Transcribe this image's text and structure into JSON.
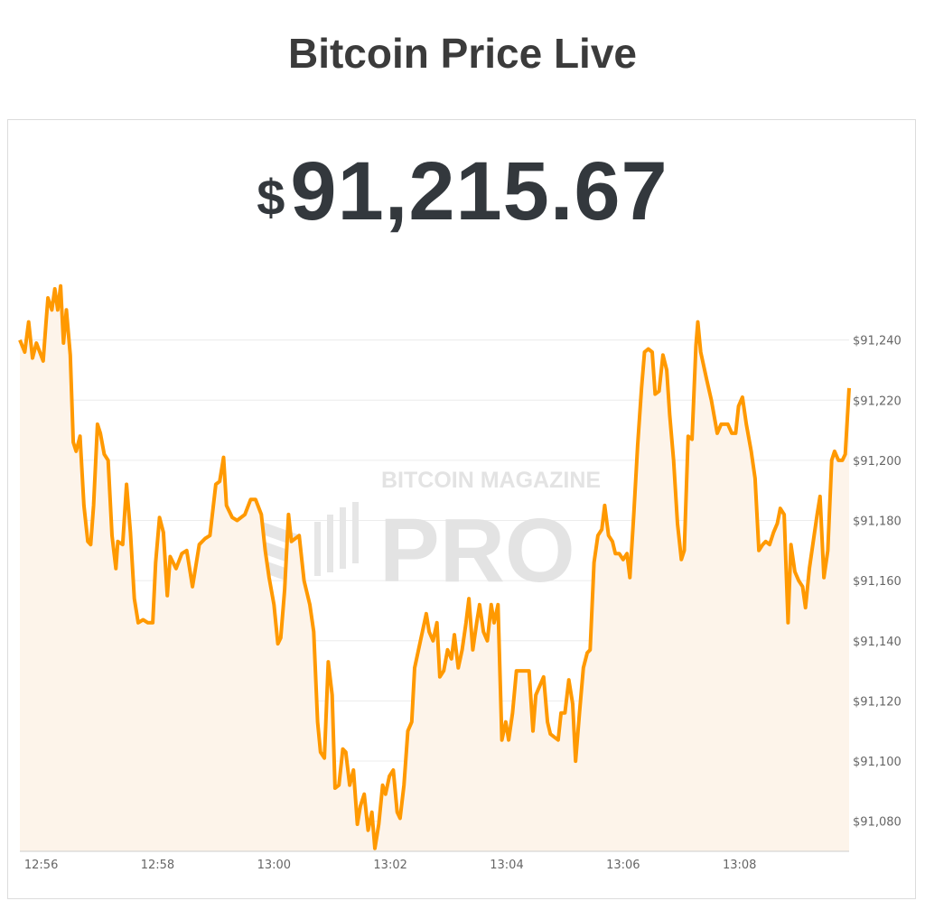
{
  "header": {
    "title": "Bitcoin Price Live"
  },
  "price": {
    "currency": "$",
    "value": "91,215.67"
  },
  "watermark": {
    "line1": "BITCOIN MAGAZINE",
    "line2": "PRO",
    "mark": "®"
  },
  "chart_data": {
    "type": "area",
    "title": "",
    "xlabel": "",
    "ylabel": "",
    "line_color": "#ff9900",
    "fill_color": "#fdf4ea",
    "grid": true,
    "y_axis_position": "right",
    "xlim": [
      "12:55:38",
      "13:09:53"
    ],
    "ylim": [
      91070,
      91263
    ],
    "x_ticks": [
      "12:56",
      "12:58",
      "13:00",
      "13:02",
      "13:04",
      "13:06",
      "13:08"
    ],
    "y_ticks": [
      91080,
      91100,
      91120,
      91140,
      91160,
      91180,
      91200,
      91220,
      91240
    ],
    "y_tick_labels": [
      "$91,080",
      "$91,100",
      "$91,120",
      "$91,140",
      "$91,160",
      "$91,180",
      "$91,200",
      "$91,220",
      "$91,240"
    ],
    "x": [
      "12:55:38",
      "12:55:43",
      "12:55:47",
      "12:55:51",
      "12:55:55",
      "12:56:02",
      "12:56:05",
      "12:56:07",
      "12:56:11",
      "12:56:14",
      "12:56:17",
      "12:56:20",
      "12:56:23",
      "12:56:26",
      "12:56:30",
      "12:56:33",
      "12:56:36",
      "12:56:40",
      "12:56:44",
      "12:56:48",
      "12:56:51",
      "12:56:54",
      "12:56:58",
      "12:57:01",
      "12:57:05",
      "12:57:09",
      "12:57:13",
      "12:57:17",
      "12:57:19",
      "12:57:24",
      "12:57:28",
      "12:57:32",
      "12:57:36",
      "12:57:40",
      "12:57:45",
      "12:57:50",
      "12:57:55",
      "12:57:58",
      "12:58:02",
      "12:58:06",
      "12:58:10",
      "12:58:13",
      "12:58:19",
      "12:58:25",
      "12:58:30",
      "12:58:36",
      "12:58:40",
      "12:58:43",
      "12:58:49",
      "12:58:54",
      "12:59:00",
      "12:59:04",
      "12:59:08",
      "12:59:11",
      "12:59:17",
      "12:59:22",
      "12:59:30",
      "12:59:36",
      "12:59:41",
      "12:59:47",
      "12:59:51",
      "12:59:55",
      "13:00:00",
      "13:00:04",
      "13:00:07",
      "13:00:11",
      "13:00:15",
      "13:00:18",
      "13:00:26",
      "13:00:31",
      "13:00:37",
      "13:00:41",
      "13:00:45",
      "13:00:48",
      "13:00:52",
      "13:00:56",
      "13:01:00",
      "13:01:03",
      "13:01:07",
      "13:01:11",
      "13:01:14",
      "13:01:18",
      "13:01:22",
      "13:01:26",
      "13:01:29",
      "13:01:33",
      "13:01:37",
      "13:01:41",
      "13:01:44",
      "13:01:48",
      "13:01:52",
      "13:01:55",
      "13:01:59",
      "13:02:03",
      "13:02:07",
      "13:02:10",
      "13:02:14",
      "13:02:18",
      "13:02:22",
      "13:02:25",
      "13:02:29",
      "13:02:33",
      "13:02:37",
      "13:02:40",
      "13:02:44",
      "13:02:48",
      "13:02:51",
      "13:02:55",
      "13:02:59",
      "13:03:03",
      "13:03:06",
      "13:03:10",
      "13:03:14",
      "13:03:18",
      "13:03:21",
      "13:03:25",
      "13:03:29",
      "13:03:32",
      "13:03:36",
      "13:03:40",
      "13:03:44",
      "13:03:47",
      "13:03:51",
      "13:03:55",
      "13:03:59",
      "13:04:02",
      "13:04:06",
      "13:04:10",
      "13:04:15",
      "13:04:23",
      "13:04:27",
      "13:04:30",
      "13:04:34",
      "13:04:38",
      "13:04:42",
      "13:04:45",
      "13:04:49",
      "13:04:53",
      "13:04:56",
      "13:05:00",
      "13:05:04",
      "13:05:08",
      "13:05:11",
      "13:05:15",
      "13:05:19",
      "13:05:23",
      "13:05:26",
      "13:05:30",
      "13:05:34",
      "13:05:38",
      "13:05:41",
      "13:05:45",
      "13:05:49",
      "13:05:52",
      "13:05:56",
      "13:06:00",
      "13:06:04",
      "13:06:07",
      "13:06:11",
      "13:06:15",
      "13:06:19",
      "13:06:22",
      "13:06:26",
      "13:06:30",
      "13:06:33",
      "13:06:37",
      "13:06:41",
      "13:06:45",
      "13:06:48",
      "13:06:52",
      "13:06:56",
      "13:07:00",
      "13:07:03",
      "13:07:07",
      "13:07:11",
      "13:07:15",
      "13:07:17",
      "13:07:20",
      "13:07:26",
      "13:07:31",
      "13:07:37",
      "13:07:41",
      "13:07:44",
      "13:07:48",
      "13:07:52",
      "13:07:56",
      "13:07:59",
      "13:08:03",
      "13:08:07",
      "13:08:12",
      "13:08:16",
      "13:08:20",
      "13:08:24",
      "13:08:27",
      "13:08:31",
      "13:08:35",
      "13:08:39",
      "13:08:42",
      "13:08:46",
      "13:08:50",
      "13:08:53",
      "13:08:57",
      "13:09:01",
      "13:09:05",
      "13:09:08",
      "13:09:12",
      "13:09:16",
      "13:09:20",
      "13:09:23",
      "13:09:27",
      "13:09:31",
      "13:09:35",
      "13:09:38",
      "13:09:42",
      "13:09:46",
      "13:09:49",
      "13:09:53"
    ],
    "y": [
      91240,
      91236,
      91246,
      91234,
      91239,
      91233,
      91246,
      91254,
      91250,
      91257,
      91250,
      91258,
      91239,
      91250,
      91235,
      91206,
      91203,
      91208,
      91185,
      91173,
      91172,
      91185,
      91212,
      91209,
      91202,
      91200,
      91175,
      91164,
      91173,
      91172,
      91192,
      91176,
      91154,
      91146,
      91147,
      91146,
      91146,
      91166,
      91181,
      91176,
      91155,
      91168,
      91164,
      91169,
      91170,
      91158,
      91166,
      91172,
      91174,
      91175,
      91192,
      91193,
      91201,
      91185,
      91181,
      91180,
      91182,
      91187,
      91187,
      91182,
      91170,
      91161,
      91152,
      91139,
      91141,
      91157,
      91182,
      91173,
      91175,
      91160,
      91152,
      91143,
      91113,
      91103,
      91101,
      91133,
      91122,
      91091,
      91092,
      91104,
      91103,
      91092,
      91097,
      91079,
      91085,
      91089,
      91077,
      91083,
      91071,
      91079,
      91092,
      91089,
      91095,
      91097,
      91083,
      91081,
      91092,
      91110,
      91113,
      91131,
      91137,
      91143,
      91149,
      91143,
      91140,
      91146,
      91128,
      91130,
      91137,
      91134,
      91142,
      91131,
      91137,
      91146,
      91154,
      91137,
      91146,
      91152,
      91143,
      91140,
      91152,
      91146,
      91152,
      91107,
      91113,
      91107,
      91116,
      91130,
      91130,
      91130,
      91110,
      91122,
      91125,
      91128,
      91113,
      91109,
      91108,
      91107,
      91116,
      91116,
      91127,
      91119,
      91100,
      91116,
      91131,
      91136,
      91137,
      91166,
      91175,
      91177,
      91185,
      91175,
      91173,
      91169,
      91169,
      91167,
      91169,
      91161,
      91182,
      91205,
      91224,
      91236,
      91237,
      91236,
      91222,
      91223,
      91235,
      91230,
      91215,
      91200,
      91179,
      91167,
      91170,
      91208,
      91207,
      91238,
      91246,
      91236,
      91227,
      91220,
      91209,
      91212,
      91212,
      91212,
      91209,
      91209,
      91218,
      91221,
      91212,
      91203,
      91194,
      91170,
      91172,
      91173,
      91172,
      91176,
      91179,
      91184,
      91182,
      91146,
      91172,
      91163,
      91160,
      91158,
      91151,
      91164,
      91173,
      91182,
      91188,
      91161,
      91170,
      91200,
      91203,
      91200,
      91200,
      91202,
      91224
    ]
  }
}
